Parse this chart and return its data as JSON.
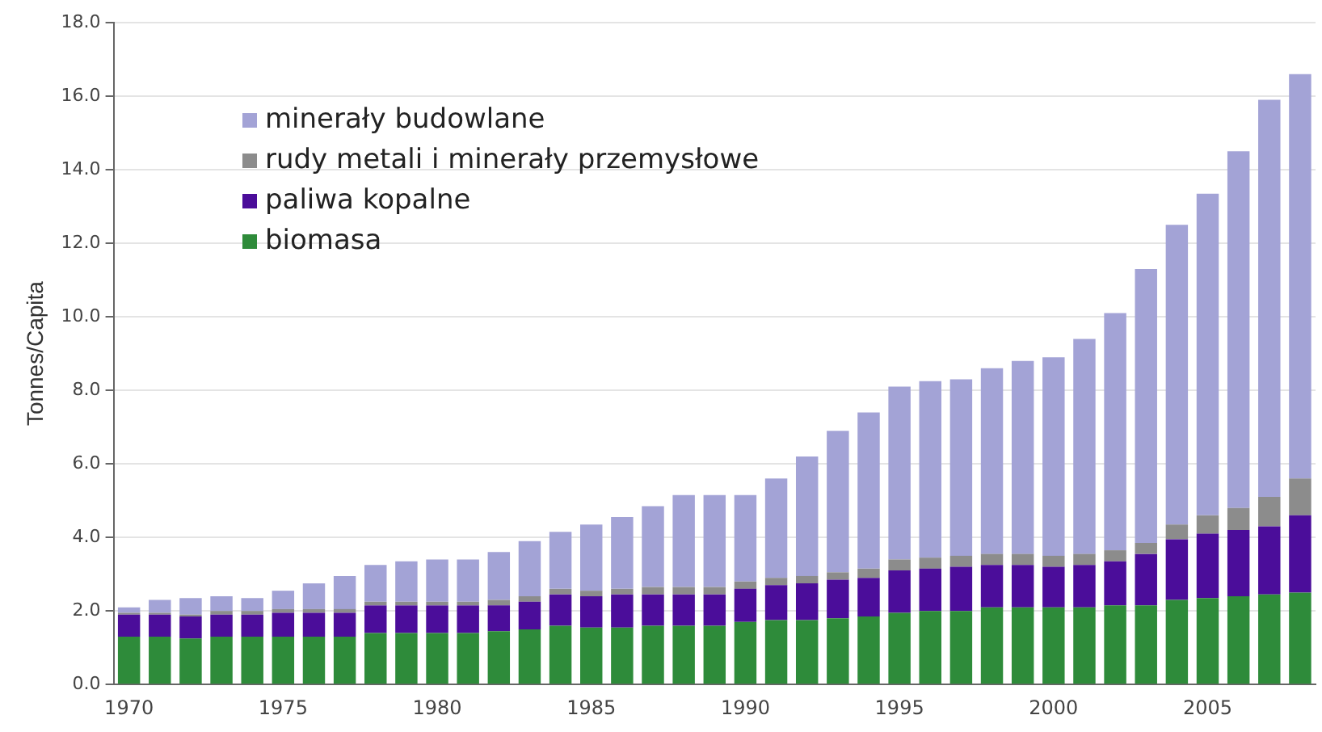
{
  "chart_data": {
    "type": "bar",
    "stacked": true,
    "ylabel": "Tonnes/Capita",
    "categories": [
      "1970",
      null,
      null,
      null,
      null,
      "1975",
      null,
      null,
      null,
      null,
      "1980",
      null,
      null,
      null,
      null,
      "1985",
      null,
      null,
      null,
      null,
      "1990",
      null,
      null,
      null,
      null,
      "1995",
      null,
      null,
      null,
      null,
      "2000",
      null,
      null,
      null,
      null,
      "2005",
      null,
      null,
      null
    ],
    "series": [
      {
        "name": "biomasa",
        "color": "#2e8b3a",
        "values": [
          1.3,
          1.3,
          1.25,
          1.3,
          1.3,
          1.3,
          1.3,
          1.3,
          1.4,
          1.4,
          1.4,
          1.4,
          1.45,
          1.5,
          1.6,
          1.55,
          1.55,
          1.6,
          1.6,
          1.6,
          1.7,
          1.75,
          1.75,
          1.8,
          1.85,
          1.95,
          2.0,
          2.0,
          2.1,
          2.1,
          2.1,
          2.1,
          2.15,
          2.15,
          2.3,
          2.35,
          2.4,
          2.45,
          2.5
        ]
      },
      {
        "name": "paliwa kopalne",
        "color": "#4b0d9a",
        "values": [
          0.6,
          0.6,
          0.6,
          0.6,
          0.6,
          0.65,
          0.65,
          0.65,
          0.75,
          0.75,
          0.75,
          0.75,
          0.7,
          0.75,
          0.85,
          0.85,
          0.9,
          0.85,
          0.85,
          0.85,
          0.9,
          0.95,
          1.0,
          1.05,
          1.05,
          1.15,
          1.15,
          1.2,
          1.15,
          1.15,
          1.1,
          1.15,
          1.2,
          1.4,
          1.65,
          1.75,
          1.8,
          1.85,
          2.1
        ]
      },
      {
        "name": "rudy metali i minerały przemysłowe",
        "color": "#8c8c8c",
        "values": [
          0.05,
          0.05,
          0.05,
          0.1,
          0.1,
          0.1,
          0.1,
          0.1,
          0.1,
          0.1,
          0.1,
          0.1,
          0.15,
          0.15,
          0.15,
          0.15,
          0.15,
          0.2,
          0.2,
          0.2,
          0.2,
          0.2,
          0.2,
          0.2,
          0.25,
          0.3,
          0.3,
          0.3,
          0.3,
          0.3,
          0.3,
          0.3,
          0.3,
          0.3,
          0.4,
          0.5,
          0.6,
          0.8,
          1.0
        ]
      },
      {
        "name": "minerały budowlane",
        "color": "#a3a3d6",
        "values": [
          0.15,
          0.35,
          0.45,
          0.4,
          0.35,
          0.5,
          0.7,
          0.9,
          1.0,
          1.1,
          1.15,
          1.15,
          1.3,
          1.5,
          1.55,
          1.8,
          1.95,
          2.2,
          2.5,
          2.5,
          2.35,
          2.7,
          3.25,
          3.85,
          4.25,
          4.7,
          4.8,
          4.8,
          5.05,
          5.25,
          5.4,
          5.85,
          6.45,
          7.45,
          8.15,
          8.75,
          9.7,
          10.8,
          11.0
        ]
      }
    ],
    "ylim": [
      0,
      18
    ],
    "yticks": [
      {
        "value": 0,
        "label": "0.0"
      },
      {
        "value": 2,
        "label": "2.0"
      },
      {
        "value": 4,
        "label": "4.0"
      },
      {
        "value": 6,
        "label": "6.0"
      },
      {
        "value": 8,
        "label": "8.0"
      },
      {
        "value": 10,
        "label": "10.0"
      },
      {
        "value": 12,
        "label": "12.0"
      },
      {
        "value": 14,
        "label": "14.0"
      },
      {
        "value": 16,
        "label": "16.0"
      },
      {
        "value": 18,
        "label": "18.0"
      }
    ],
    "grid": "y",
    "legend": "top left"
  }
}
